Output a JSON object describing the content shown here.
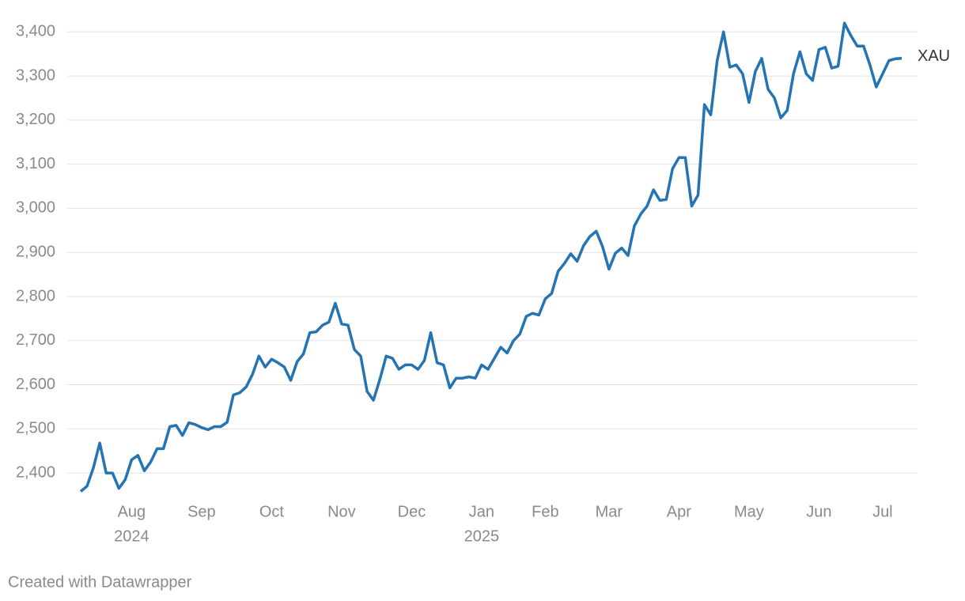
{
  "chart_data": {
    "type": "line",
    "categories": [
      null,
      null,
      null,
      null,
      null,
      null,
      null,
      null,
      "Aug",
      null,
      null,
      null,
      null,
      null,
      null,
      null,
      null,
      null,
      null,
      "Sep",
      null,
      null,
      null,
      null,
      null,
      null,
      null,
      null,
      null,
      null,
      "Oct",
      null,
      null,
      null,
      null,
      null,
      null,
      null,
      null,
      null,
      null,
      "Nov",
      null,
      null,
      null,
      null,
      null,
      null,
      null,
      null,
      null,
      null,
      "Dec",
      null,
      null,
      null,
      null,
      null,
      null,
      null,
      null,
      null,
      null,
      "Jan",
      null,
      null,
      null,
      null,
      null,
      null,
      null,
      null,
      null,
      "Feb",
      null,
      null,
      null,
      null,
      null,
      null,
      null,
      null,
      null,
      "Mar",
      null,
      null,
      null,
      null,
      null,
      null,
      null,
      null,
      null,
      null,
      "Apr",
      null,
      null,
      null,
      null,
      null,
      null,
      null,
      null,
      null,
      null,
      "May",
      null,
      null,
      null,
      null,
      null,
      null,
      null,
      null,
      null,
      null,
      "Jun",
      null,
      null,
      null,
      null,
      null,
      null,
      null,
      null,
      null,
      "Jul",
      null,
      null,
      null
    ],
    "category_years": [
      null,
      null,
      null,
      null,
      null,
      null,
      null,
      null,
      "2024",
      null,
      null,
      null,
      null,
      null,
      null,
      null,
      null,
      null,
      null,
      null,
      null,
      null,
      null,
      null,
      null,
      null,
      null,
      null,
      null,
      null,
      null,
      null,
      null,
      null,
      null,
      null,
      null,
      null,
      null,
      null,
      null,
      null,
      null,
      null,
      null,
      null,
      null,
      null,
      null,
      null,
      null,
      null,
      null,
      null,
      null,
      null,
      null,
      null,
      null,
      null,
      null,
      null,
      null,
      "2025",
      null,
      null,
      null,
      null,
      null,
      null,
      null,
      null,
      null,
      null,
      null,
      null,
      null,
      null,
      null,
      null,
      null,
      null,
      null,
      null,
      null,
      null,
      null,
      null,
      null,
      null,
      null,
      null,
      null,
      null,
      null,
      null,
      null,
      null,
      null,
      null,
      null,
      null,
      null,
      null,
      null,
      null,
      null,
      null,
      null,
      null,
      null,
      null,
      null,
      null,
      null,
      null,
      null,
      null,
      null,
      null,
      null,
      null,
      null,
      null,
      null,
      null,
      null,
      null,
      null,
      null
    ],
    "series": [
      {
        "name": "XAU",
        "color": "#2473b3",
        "values": [
          2358,
          2370,
          2412,
          2468,
          2400,
          2400,
          2365,
          2385,
          2430,
          2440,
          2405,
          2425,
          2455,
          2455,
          2505,
          2508,
          2485,
          2514,
          2510,
          2503,
          2498,
          2505,
          2505,
          2515,
          2577,
          2582,
          2595,
          2624,
          2665,
          2640,
          2658,
          2650,
          2640,
          2610,
          2652,
          2670,
          2718,
          2720,
          2735,
          2742,
          2785,
          2738,
          2735,
          2680,
          2665,
          2585,
          2565,
          2612,
          2665,
          2660,
          2635,
          2645,
          2645,
          2635,
          2655,
          2718,
          2650,
          2645,
          2593,
          2615,
          2615,
          2618,
          2615,
          2645,
          2635,
          2660,
          2685,
          2672,
          2700,
          2715,
          2755,
          2762,
          2758,
          2795,
          2807,
          2857,
          2875,
          2897,
          2880,
          2915,
          2936,
          2948,
          2913,
          2862,
          2898,
          2910,
          2893,
          2960,
          2987,
          3005,
          3042,
          3018,
          3020,
          3090,
          3115,
          3115,
          3005,
          3030,
          3235,
          3212,
          3335,
          3400,
          3320,
          3325,
          3305,
          3240,
          3310,
          3340,
          3270,
          3250,
          3205,
          3222,
          3305,
          3355,
          3305,
          3290,
          3360,
          3365,
          3318,
          3322,
          3420,
          3392,
          3368,
          3368,
          3325,
          3275,
          3305,
          3335,
          3339,
          3340
        ]
      }
    ],
    "ylim": [
      2350,
      3440
    ],
    "yticks": [
      {
        "value": 2400,
        "label": "2,400"
      },
      {
        "value": 2500,
        "label": "2,500"
      },
      {
        "value": 2600,
        "label": "2,600"
      },
      {
        "value": 2700,
        "label": "2,700"
      },
      {
        "value": 2800,
        "label": "2,800"
      },
      {
        "value": 2900,
        "label": "2,900"
      },
      {
        "value": 3000,
        "label": "3,000"
      },
      {
        "value": 3100,
        "label": "3,100"
      },
      {
        "value": 3200,
        "label": "3,200"
      },
      {
        "value": 3300,
        "label": "3,300"
      },
      {
        "value": 3400,
        "label": "3,400"
      }
    ],
    "grid": true,
    "credit": "Created with Datawrapper"
  }
}
